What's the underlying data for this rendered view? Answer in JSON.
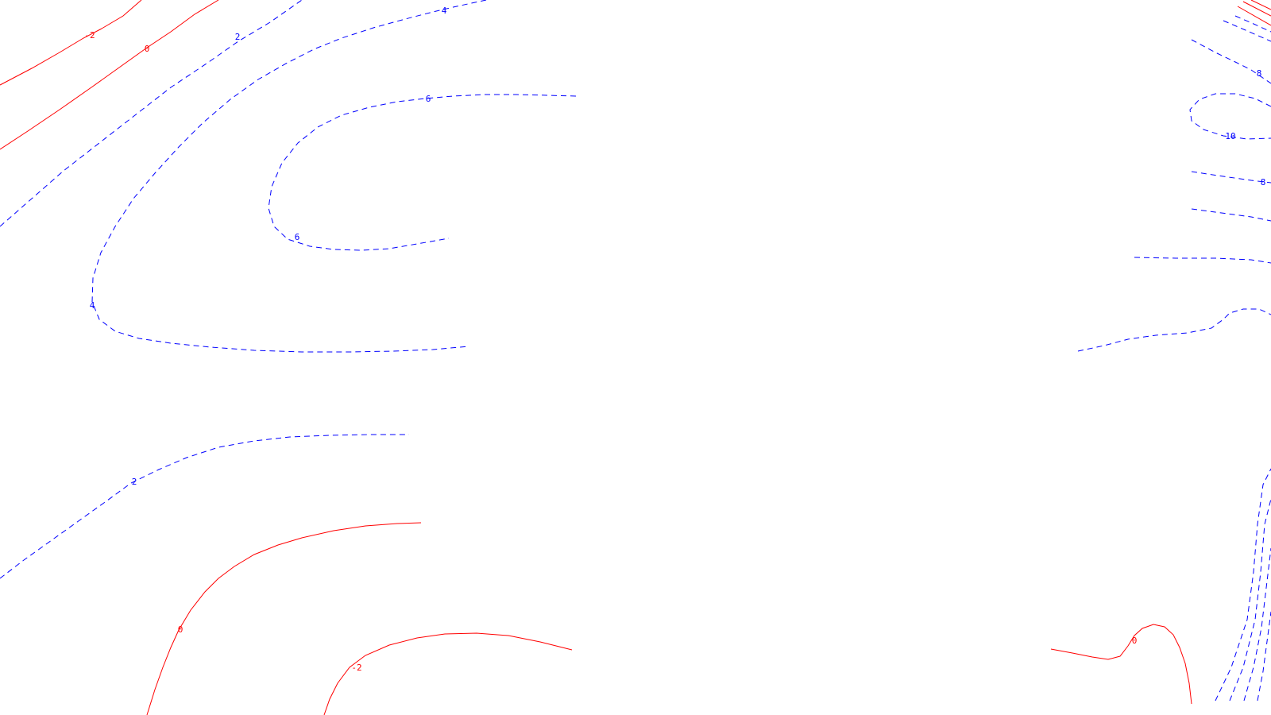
{
  "chart_data": {
    "type": "contour",
    "title": "",
    "xlabel": "",
    "ylabel": "",
    "grid": false,
    "colors": {
      "background": "#ffffff",
      "non_positive": "#ff0000",
      "positive": "#0000ff"
    },
    "line_styles": {
      "non_positive": "solid",
      "positive": "dashed"
    },
    "contour_labels": [
      {
        "id": "upper-left-neg2",
        "text": "-2",
        "value": -2
      },
      {
        "id": "upper-left-0",
        "text": "0",
        "value": 0
      },
      {
        "id": "upper-left-2",
        "text": "2",
        "value": 2
      },
      {
        "id": "top-4",
        "text": "4",
        "value": 4
      },
      {
        "id": "inner-6-top",
        "text": "6",
        "value": 6
      },
      {
        "id": "inner-6-bottom",
        "text": "6",
        "value": 6
      },
      {
        "id": "outer-4-left",
        "text": "4",
        "value": 4
      },
      {
        "id": "lower-left-2",
        "text": "2",
        "value": 2
      },
      {
        "id": "lower-left-0",
        "text": "0",
        "value": 0
      },
      {
        "id": "lower-neg2",
        "text": "-2",
        "value": -2
      },
      {
        "id": "right-8-upper",
        "text": "8",
        "value": 8
      },
      {
        "id": "right-10",
        "text": "10",
        "value": 10
      },
      {
        "id": "right-8-lower",
        "text": "8",
        "value": 8
      },
      {
        "id": "lower-right-0",
        "text": "0",
        "value": 0
      }
    ]
  }
}
